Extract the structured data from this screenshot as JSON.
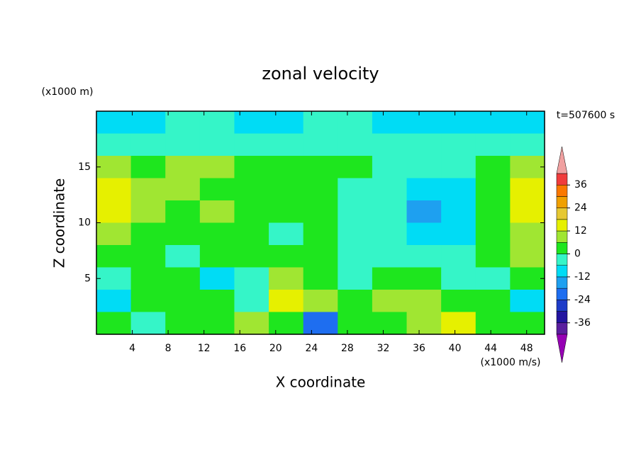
{
  "chart_data": {
    "type": "contour",
    "title": "zonal velocity",
    "x_label": "X coordinate",
    "y_label": "Z coordinate",
    "x_unit": "(x1000 m/s)",
    "y_unit": "(x1000 m)",
    "annotation": "t=507600 s",
    "xlim": [
      0,
      50
    ],
    "xticks": [
      4,
      8,
      12,
      16,
      20,
      24,
      28,
      32,
      36,
      40,
      44,
      48
    ],
    "ylim": [
      0,
      20
    ],
    "yticks": [
      5,
      10,
      15
    ],
    "z": [
      [
        -8,
        -8,
        -3,
        -3,
        -8,
        -8,
        -3,
        -3,
        -8,
        -8,
        -8,
        -8,
        -8
      ],
      [
        -3,
        -3,
        -3,
        -3,
        -3,
        -3,
        -3,
        -3,
        -3,
        -3,
        -3,
        -3,
        -3
      ],
      [
        10,
        3,
        9,
        10,
        3,
        3,
        3,
        3,
        -3,
        -3,
        -3,
        3,
        10
      ],
      [
        15,
        10,
        9,
        3,
        3,
        3,
        3,
        -3,
        -3,
        -9,
        -9,
        3,
        15
      ],
      [
        15,
        10,
        3,
        9,
        3,
        3,
        3,
        -3,
        -3,
        -15,
        -9,
        3,
        15
      ],
      [
        10,
        3,
        3,
        3,
        3,
        -3,
        3,
        -3,
        -3,
        -9,
        -9,
        3,
        10
      ],
      [
        3,
        3,
        -3,
        3,
        3,
        3,
        3,
        -3,
        -3,
        -3,
        -3,
        3,
        9
      ],
      [
        -3,
        3,
        3,
        -9,
        -3,
        9,
        3,
        -3,
        3,
        3,
        -3,
        -3,
        3
      ],
      [
        -9,
        3,
        3,
        3,
        -3,
        15,
        9,
        3,
        9,
        9,
        3,
        3,
        -9
      ],
      [
        3,
        -3,
        3,
        3,
        9,
        3,
        -21,
        3,
        3,
        9,
        15,
        3,
        3
      ]
    ],
    "levels": [
      -42,
      -36,
      -30,
      -24,
      -18,
      -12,
      -6,
      0,
      6,
      12,
      18,
      24,
      30,
      36,
      42
    ],
    "colors": [
      "#5a1e9e",
      "#2314a0",
      "#1e3cc8",
      "#1e6ef0",
      "#1ea0f0",
      "#00dcf5",
      "#35f5c8",
      "#1ee61e",
      "#a0e632",
      "#e6f000",
      "#e6c832",
      "#f0a000",
      "#fa7800",
      "#f03c3c"
    ],
    "under_color": "#9600b4",
    "over_color": "#f0a0a0",
    "cbar_ticks": [
      -36,
      -24,
      -12,
      0,
      12,
      24,
      36
    ]
  }
}
